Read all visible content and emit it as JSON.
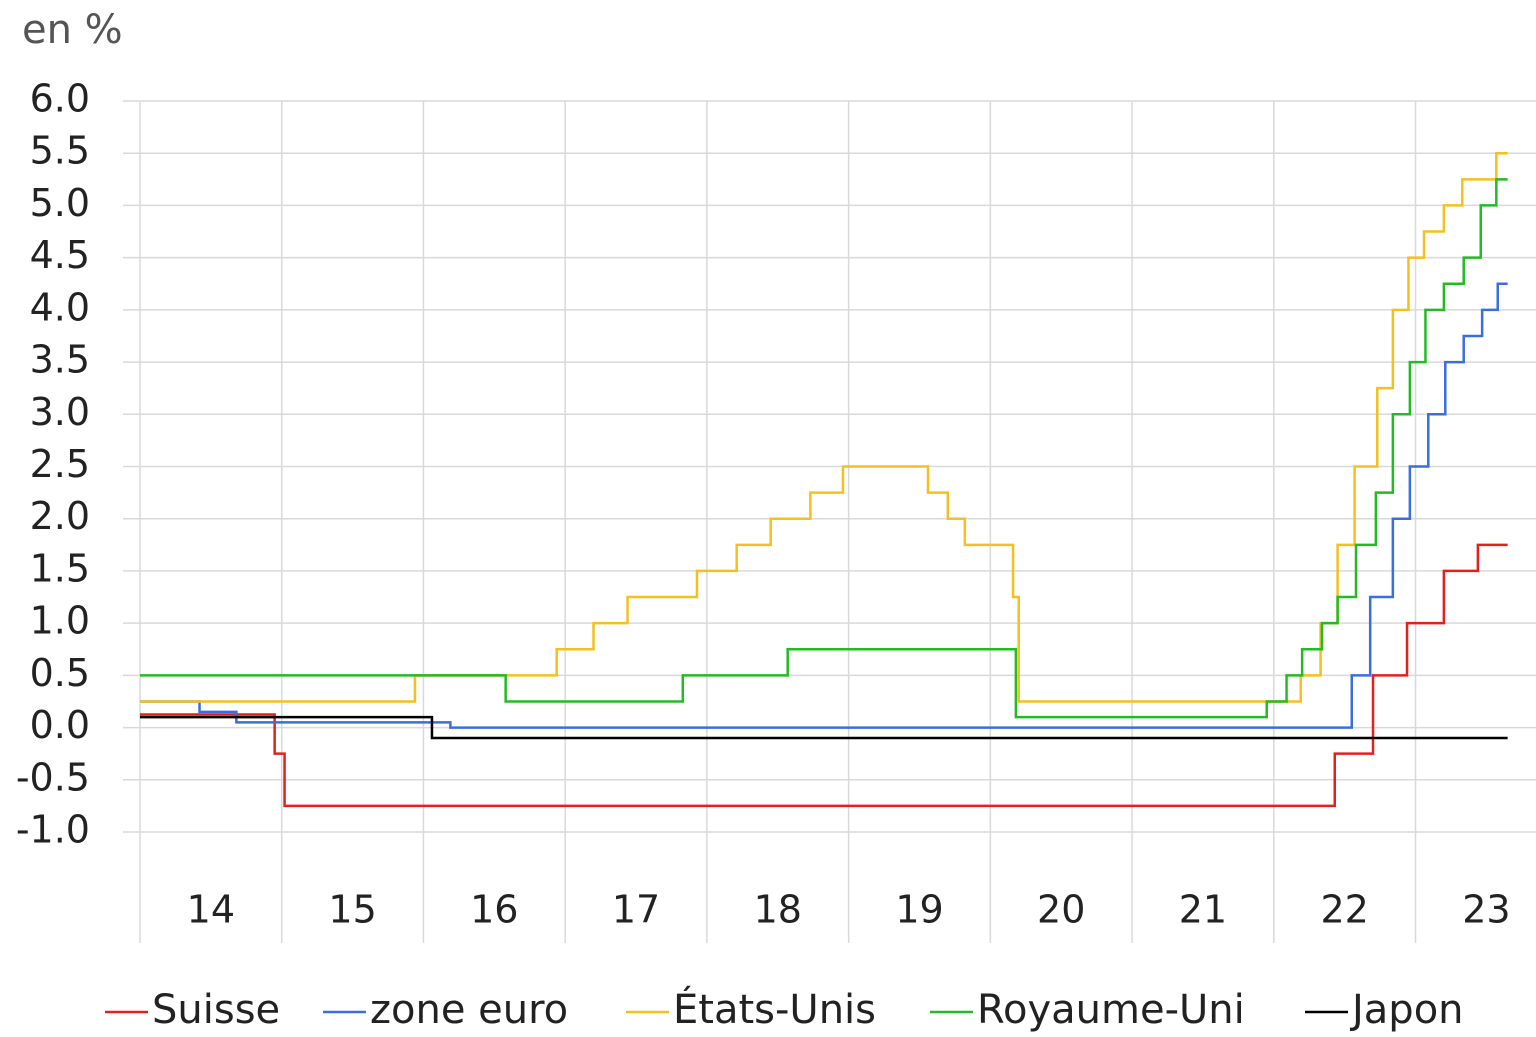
{
  "chart_data": {
    "type": "line",
    "step": "post",
    "title": "en %",
    "xlim": [
      14,
      23.85
    ],
    "xticks": [
      14,
      15,
      16,
      17,
      18,
      19,
      20,
      21,
      22,
      23
    ],
    "categories": [
      "14",
      "15",
      "16",
      "17",
      "18",
      "19",
      "20",
      "21",
      "22",
      "23"
    ],
    "ylim": [
      -1,
      6
    ],
    "yticks": [
      {
        "value": 6,
        "label": "6.0"
      },
      {
        "value": 5.5,
        "label": "5.5"
      },
      {
        "value": 5,
        "label": "5.0"
      },
      {
        "value": 4.5,
        "label": "4.5"
      },
      {
        "value": 4,
        "label": "4.0"
      },
      {
        "value": 3.5,
        "label": "3.5"
      },
      {
        "value": 3,
        "label": "3.0"
      },
      {
        "value": 2.5,
        "label": "2.5"
      },
      {
        "value": 2,
        "label": "2.0"
      },
      {
        "value": 1.5,
        "label": "1.5"
      },
      {
        "value": 1,
        "label": "1.0"
      },
      {
        "value": 0.5,
        "label": "0.5"
      },
      {
        "value": 0,
        "label": "0.0"
      },
      {
        "value": -0.5,
        "label": "-0.5"
      },
      {
        "value": -1,
        "label": "-1.0"
      }
    ],
    "grid": true,
    "legend": "bottom",
    "series": [
      {
        "name": "Suisse",
        "color": "#e3211c",
        "x": [
          14,
          14.95,
          15.02,
          22.43,
          22.7,
          22.94,
          23.2,
          23.44,
          23.65
        ],
        "values": [
          0.125,
          -0.25,
          -0.75,
          -0.25,
          0.5,
          1.0,
          1.5,
          1.75,
          1.75
        ]
      },
      {
        "name": "zone euro",
        "color": "#3a6ee0",
        "x": [
          14,
          14.42,
          14.68,
          16.19,
          22.55,
          22.68,
          22.84,
          22.96,
          23.09,
          23.21,
          23.34,
          23.47,
          23.58,
          23.65
        ],
        "values": [
          0.25,
          0.15,
          0.05,
          0.0,
          0.5,
          1.25,
          2.0,
          2.5,
          3.0,
          3.5,
          3.75,
          4.0,
          4.25,
          4.25
        ]
      },
      {
        "name": "États-Unis",
        "color": "#f5c01e",
        "x": [
          14,
          15.94,
          16.94,
          17.2,
          17.44,
          17.93,
          18.21,
          18.45,
          18.73,
          18.96,
          19.56,
          19.7,
          19.82,
          20.16,
          20.2,
          22.19,
          22.33,
          22.45,
          22.57,
          22.73,
          22.84,
          22.95,
          23.06,
          23.2,
          23.33,
          23.57,
          23.65
        ],
        "values": [
          0.25,
          0.5,
          0.75,
          1.0,
          1.25,
          1.5,
          1.75,
          2.0,
          2.25,
          2.5,
          2.25,
          2.0,
          1.75,
          1.25,
          0.25,
          0.5,
          1.0,
          1.75,
          2.5,
          3.25,
          4.0,
          4.5,
          4.75,
          5.0,
          5.25,
          5.5,
          5.5
        ]
      },
      {
        "name": "Royaume-Uni",
        "color": "#22bb22",
        "x": [
          14,
          16.58,
          17.83,
          18.57,
          20.18,
          21.95,
          22.09,
          22.2,
          22.34,
          22.45,
          22.58,
          22.72,
          22.84,
          22.96,
          23.07,
          23.2,
          23.34,
          23.46,
          23.57,
          23.65
        ],
        "values": [
          0.5,
          0.25,
          0.5,
          0.75,
          0.1,
          0.25,
          0.5,
          0.75,
          1.0,
          1.25,
          1.75,
          2.25,
          3.0,
          3.5,
          4.0,
          4.25,
          4.5,
          5.0,
          5.25,
          5.25
        ]
      },
      {
        "name": "Japon",
        "color": "#000000",
        "x": [
          14,
          16.06,
          23.65
        ],
        "values": [
          0.1,
          -0.1,
          -0.1
        ]
      }
    ]
  }
}
